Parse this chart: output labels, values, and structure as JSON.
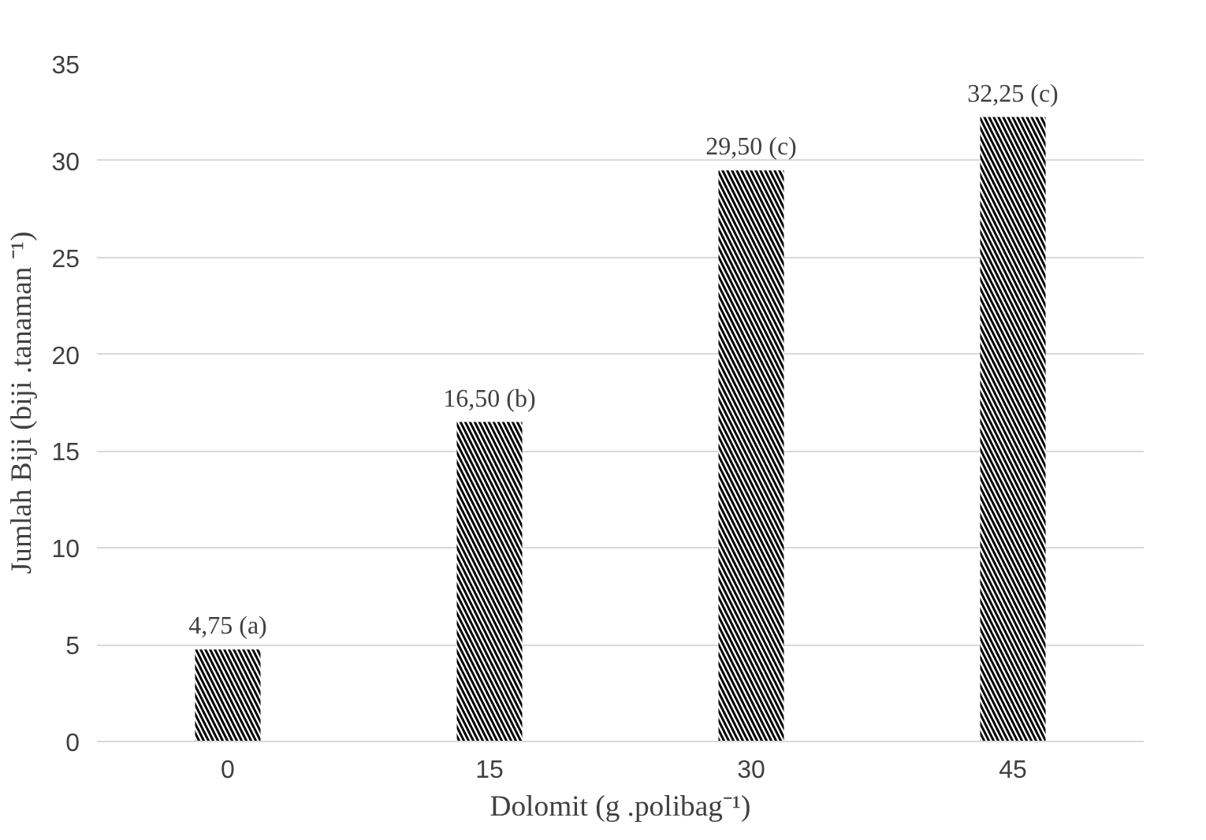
{
  "chart_data": {
    "type": "bar",
    "categories": [
      "0",
      "15",
      "30",
      "45"
    ],
    "values": [
      4.75,
      16.5,
      29.5,
      32.25
    ],
    "value_labels": [
      "4,75 (a)",
      "16,50 (b)",
      "29,50 (c)",
      "32,25 (c)"
    ],
    "color": "#000000",
    "xlabel": "Dolomit (g .polibag⁻¹)",
    "ylabel": "Jumlah Biji (biji .tanaman ⁻¹)",
    "ylim": [
      0,
      35
    ],
    "yticks": [
      0,
      5,
      10,
      15,
      20,
      25,
      30,
      35
    ],
    "grid": "y"
  }
}
